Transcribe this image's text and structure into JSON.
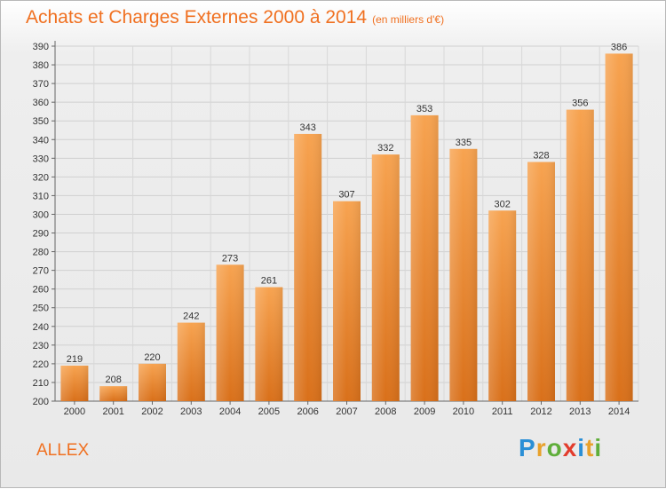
{
  "header": {
    "title": "Achats et Charges Externes 2000 à 2014",
    "subtitle": "(en milliers d'€)"
  },
  "location": "ALLEX",
  "logo": {
    "letters": [
      {
        "char": "P",
        "color": "#2a8fd6"
      },
      {
        "char": "r",
        "color": "#e8a12b"
      },
      {
        "char": "o",
        "color": "#5fae3a"
      },
      {
        "char": "x",
        "color": "#e23c2c"
      },
      {
        "char": "i",
        "color": "#2a8fd6"
      },
      {
        "char": "t",
        "color": "#e8a12b"
      },
      {
        "char": "i",
        "color": "#5fae3a"
      }
    ]
  },
  "colors": {
    "accent": "#f07020",
    "bar_light": "#f7a85a",
    "bar_dark": "#e07a1f"
  },
  "chart_data": {
    "type": "bar",
    "title": "Achats et Charges Externes 2000 à 2014",
    "subtitle": "(en milliers d'€)",
    "categories": [
      "2000",
      "2001",
      "2002",
      "2003",
      "2004",
      "2005",
      "2006",
      "2007",
      "2008",
      "2009",
      "2010",
      "2011",
      "2012",
      "2013",
      "2014"
    ],
    "values": [
      219,
      208,
      220,
      242,
      273,
      261,
      343,
      307,
      332,
      353,
      335,
      302,
      328,
      356,
      386
    ],
    "ylim": [
      200,
      390
    ],
    "ytick_step": 10,
    "grid": true,
    "xlabel": "",
    "ylabel": ""
  }
}
